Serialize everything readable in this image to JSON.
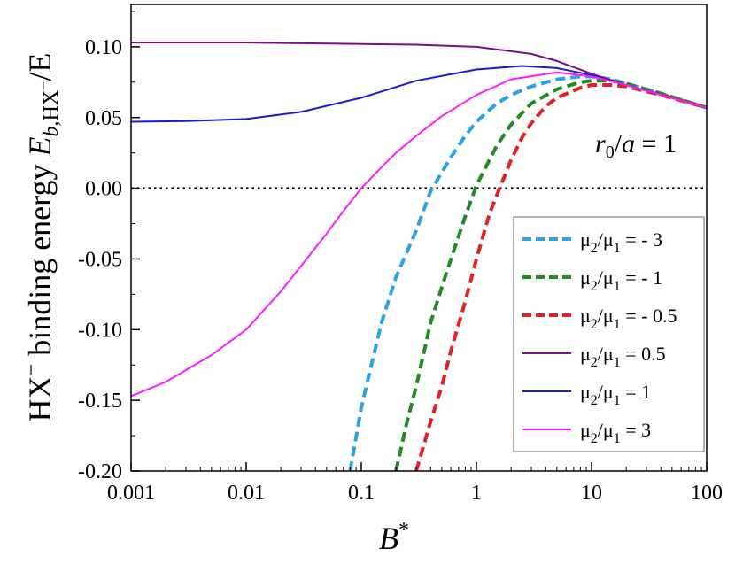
{
  "chart_data": {
    "type": "line",
    "x_scale": "log",
    "xlim": [
      0.001,
      100
    ],
    "ylim": [
      -0.2,
      0.13
    ],
    "xlabel": "B*",
    "ylabel": "HX⁻ binding energy E_b,HX⁻/E",
    "x_ticks": [
      0.001,
      0.01,
      0.1,
      1,
      10,
      100
    ],
    "x_tick_labels": [
      "0.001",
      "0.01",
      "0.1",
      "1",
      "10",
      "100"
    ],
    "y_ticks": [
      -0.2,
      -0.15,
      -0.1,
      -0.05,
      0.0,
      0.05,
      0.1
    ],
    "y_tick_labels": [
      "-0.20",
      "-0.15",
      "-0.10",
      "-0.05",
      "0.00",
      "0.05",
      "0.10"
    ],
    "annotation": "r0/a = 1",
    "reference_line": {
      "y": 0.0,
      "style": "dotted",
      "color": "#000000"
    },
    "legend_position": "bottom-right",
    "series": [
      {
        "name": "μ2/μ1 = - 3",
        "color": "#29a3e6",
        "dashed": true,
        "x": [
          0.08,
          0.1,
          0.15,
          0.2,
          0.3,
          0.4,
          0.6,
          0.8,
          1,
          1.5,
          2,
          3,
          5,
          8,
          10,
          15,
          20,
          40,
          100
        ],
        "y": [
          -0.2,
          -0.155,
          -0.095,
          -0.063,
          -0.03,
          -0.002,
          0.022,
          0.037,
          0.047,
          0.06,
          0.066,
          0.072,
          0.077,
          0.079,
          0.079,
          0.077,
          0.074,
          0.067,
          0.057
        ]
      },
      {
        "name": "μ2/μ1 = - 1",
        "color": "#218a21",
        "dashed": true,
        "x": [
          0.2,
          0.25,
          0.3,
          0.4,
          0.5,
          0.6,
          0.8,
          1,
          1.5,
          2,
          3,
          5,
          8,
          10,
          15,
          20,
          40,
          100
        ],
        "y": [
          -0.2,
          -0.165,
          -0.14,
          -0.095,
          -0.07,
          -0.05,
          -0.02,
          0.002,
          0.03,
          0.045,
          0.06,
          0.07,
          0.075,
          0.076,
          0.076,
          0.074,
          0.067,
          0.057
        ]
      },
      {
        "name": "μ2/μ1 = - 0.5",
        "color": "#e62020",
        "dashed": true,
        "x": [
          0.3,
          0.4,
          0.5,
          0.6,
          0.8,
          1,
          1.3,
          1.5,
          2,
          2.5,
          3,
          4,
          5,
          8,
          10,
          15,
          20,
          40,
          100
        ],
        "y": [
          -0.2,
          -0.165,
          -0.14,
          -0.115,
          -0.08,
          -0.05,
          -0.018,
          -0.005,
          0.02,
          0.036,
          0.046,
          0.058,
          0.064,
          0.071,
          0.073,
          0.073,
          0.072,
          0.066,
          0.057
        ]
      },
      {
        "name": "μ2/μ1 = 0.5",
        "color": "#7a1080",
        "dashed": false,
        "x": [
          0.001,
          0.01,
          0.1,
          0.3,
          1,
          3,
          5,
          10,
          20,
          40,
          100
        ],
        "y": [
          0.103,
          0.103,
          0.102,
          0.1015,
          0.1,
          0.095,
          0.09,
          0.081,
          0.073,
          0.066,
          0.057
        ]
      },
      {
        "name": "μ2/μ1 = 1",
        "color": "#1a1acc",
        "dashed": false,
        "x": [
          0.001,
          0.003,
          0.01,
          0.03,
          0.1,
          0.3,
          1,
          2.5,
          5,
          10,
          20,
          40,
          100
        ],
        "y": [
          0.047,
          0.0475,
          0.049,
          0.054,
          0.064,
          0.076,
          0.084,
          0.0865,
          0.085,
          0.08,
          0.073,
          0.066,
          0.057
        ]
      },
      {
        "name": "μ2/μ1 = 3",
        "color": "#ff1aff",
        "dashed": false,
        "x": [
          0.001,
          0.002,
          0.005,
          0.01,
          0.02,
          0.03,
          0.05,
          0.07,
          0.1,
          0.15,
          0.2,
          0.3,
          0.5,
          1,
          2,
          5,
          10,
          20,
          40,
          100
        ],
        "y": [
          -0.147,
          -0.137,
          -0.118,
          -0.1,
          -0.073,
          -0.055,
          -0.032,
          -0.016,
          0.0,
          0.015,
          0.025,
          0.037,
          0.051,
          0.066,
          0.077,
          0.082,
          0.079,
          0.073,
          0.066,
          0.057
        ]
      }
    ]
  }
}
